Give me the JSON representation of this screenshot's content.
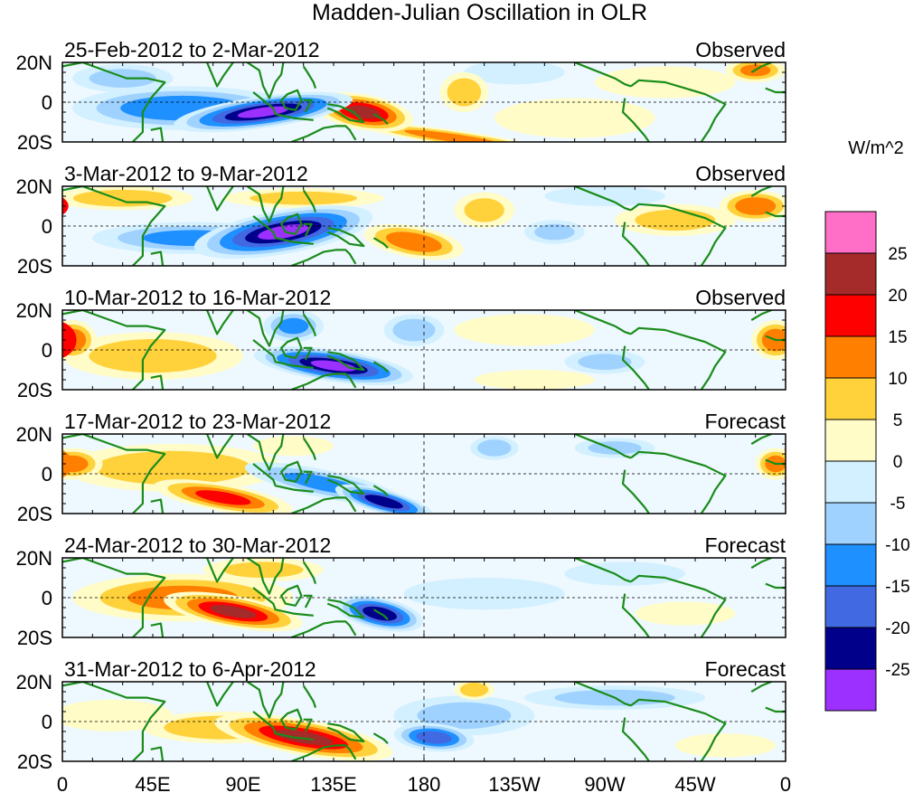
{
  "chart_data": {
    "type": "heatmap",
    "title": "Madden-Julian Oscillation in OLR",
    "variable": "OLR anomaly",
    "units": "W/m^2",
    "panels": [
      {
        "period": "25-Feb-2012 to 2-Mar-2012",
        "kind": "Observed",
        "features": [
          {
            "lon": 100,
            "lat": -5,
            "value": -30,
            "rx": 45,
            "ry": 8,
            "rot": -8
          },
          {
            "lon": 60,
            "lat": -3,
            "value": -18,
            "rx": 55,
            "ry": 11
          },
          {
            "lon": 150,
            "lat": -5,
            "value": 25,
            "rx": 25,
            "ry": 9,
            "rot": 10
          },
          {
            "lon": 200,
            "lat": 5,
            "value": 12,
            "rx": 12,
            "ry": 10
          },
          {
            "lon": 195,
            "lat": -18,
            "value": 15,
            "rx": 50,
            "ry": 4,
            "rot": 8
          },
          {
            "lon": 345,
            "lat": 16,
            "value": 15,
            "rx": 15,
            "ry": 6
          },
          {
            "lon": 255,
            "lat": -8,
            "value": 6,
            "rx": 40,
            "ry": 10
          },
          {
            "lon": 300,
            "lat": 10,
            "value": 6,
            "rx": 35,
            "ry": 8
          },
          {
            "lon": 30,
            "lat": 12,
            "value": -10,
            "rx": 25,
            "ry": 7
          },
          {
            "lon": 225,
            "lat": 15,
            "value": -6,
            "rx": 25,
            "ry": 6
          }
        ]
      },
      {
        "period": "3-Mar-2012 to 9-Mar-2012",
        "kind": "Observed",
        "features": [
          {
            "lon": 110,
            "lat": -3,
            "value": -30,
            "rx": 45,
            "ry": 11,
            "rot": -10
          },
          {
            "lon": 65,
            "lat": -6,
            "value": -15,
            "rx": 50,
            "ry": 8
          },
          {
            "lon": 175,
            "lat": -8,
            "value": 18,
            "rx": 25,
            "ry": 8,
            "rot": 10
          },
          {
            "lon": 30,
            "lat": 14,
            "value": 12,
            "rx": 35,
            "ry": 6
          },
          {
            "lon": 120,
            "lat": 14,
            "value": 10,
            "rx": 40,
            "ry": 5
          },
          {
            "lon": 210,
            "lat": 8,
            "value": 10,
            "rx": 15,
            "ry": 9
          },
          {
            "lon": 345,
            "lat": 10,
            "value": 18,
            "rx": 18,
            "ry": 8
          },
          {
            "lon": 305,
            "lat": 3,
            "value": 10,
            "rx": 30,
            "ry": 8
          },
          {
            "lon": 245,
            "lat": -3,
            "value": -10,
            "rx": 15,
            "ry": 6
          },
          {
            "lon": 270,
            "lat": 15,
            "value": -8,
            "rx": 30,
            "ry": 5
          }
        ]
      },
      {
        "period": "10-Mar-2012 to 16-Mar-2012",
        "kind": "Observed",
        "features": [
          {
            "lon": 135,
            "lat": -8,
            "value": -30,
            "rx": 40,
            "ry": 8,
            "rot": 8
          },
          {
            "lon": 115,
            "lat": 12,
            "value": -15,
            "rx": 15,
            "ry": 8
          },
          {
            "lon": 175,
            "lat": 10,
            "value": -12,
            "rx": 15,
            "ry": 8
          },
          {
            "lon": 45,
            "lat": -3,
            "value": 12,
            "rx": 45,
            "ry": 12
          },
          {
            "lon": 5,
            "lat": 5,
            "value": 18,
            "rx": 12,
            "ry": 10
          },
          {
            "lon": 355,
            "lat": 5,
            "value": 18,
            "rx": 12,
            "ry": 10
          },
          {
            "lon": 230,
            "lat": 10,
            "value": 8,
            "rx": 35,
            "ry": 8
          },
          {
            "lon": 270,
            "lat": -6,
            "value": -10,
            "rx": 20,
            "ry": 6
          },
          {
            "lon": 235,
            "lat": -15,
            "value": 6,
            "rx": 30,
            "ry": 5
          }
        ]
      },
      {
        "period": "17-Mar-2012 to 23-Mar-2012",
        "kind": "Forecast",
        "features": [
          {
            "lon": 160,
            "lat": -14,
            "value": -28,
            "rx": 25,
            "ry": 6,
            "rot": 15
          },
          {
            "lon": 130,
            "lat": -5,
            "value": -15,
            "rx": 40,
            "ry": 7,
            "rot": 12
          },
          {
            "lon": 80,
            "lat": -12,
            "value": 20,
            "rx": 35,
            "ry": 7,
            "rot": 10
          },
          {
            "lon": 55,
            "lat": 3,
            "value": 12,
            "rx": 55,
            "ry": 12
          },
          {
            "lon": 5,
            "lat": 5,
            "value": 16,
            "rx": 15,
            "ry": 8
          },
          {
            "lon": 355,
            "lat": 5,
            "value": 16,
            "rx": 10,
            "ry": 8
          },
          {
            "lon": 215,
            "lat": 13,
            "value": -12,
            "rx": 12,
            "ry": 6
          },
          {
            "lon": 275,
            "lat": 13,
            "value": -10,
            "rx": 20,
            "ry": 5
          },
          {
            "lon": 115,
            "lat": 14,
            "value": 8,
            "rx": 20,
            "ry": 5
          }
        ]
      },
      {
        "period": "24-Mar-2012 to 30-Mar-2012",
        "kind": "Forecast",
        "features": [
          {
            "lon": 158,
            "lat": -8,
            "value": -28,
            "rx": 22,
            "ry": 8,
            "rot": 12
          },
          {
            "lon": 85,
            "lat": -7,
            "value": 25,
            "rx": 35,
            "ry": 8,
            "rot": 10
          },
          {
            "lon": 60,
            "lat": 0,
            "value": 15,
            "rx": 55,
            "ry": 12
          },
          {
            "lon": 100,
            "lat": 14,
            "value": 10,
            "rx": 30,
            "ry": 6
          },
          {
            "lon": 210,
            "lat": 2,
            "value": -8,
            "rx": 40,
            "ry": 8
          },
          {
            "lon": 280,
            "lat": 12,
            "value": -8,
            "rx": 30,
            "ry": 6
          },
          {
            "lon": 310,
            "lat": -8,
            "value": 6,
            "rx": 25,
            "ry": 6
          }
        ]
      },
      {
        "period": "31-Mar-2012 to 6-Apr-2012",
        "kind": "Forecast",
        "features": [
          {
            "lon": 120,
            "lat": -8,
            "value": 25,
            "rx": 45,
            "ry": 9,
            "rot": 10
          },
          {
            "lon": 80,
            "lat": -3,
            "value": 14,
            "rx": 40,
            "ry": 8
          },
          {
            "lon": 185,
            "lat": -8,
            "value": -22,
            "rx": 20,
            "ry": 7,
            "rot": 5
          },
          {
            "lon": 200,
            "lat": 3,
            "value": -10,
            "rx": 35,
            "ry": 10
          },
          {
            "lon": 275,
            "lat": 12,
            "value": -10,
            "rx": 45,
            "ry": 6
          },
          {
            "lon": 25,
            "lat": 3,
            "value": 8,
            "rx": 30,
            "ry": 8
          },
          {
            "lon": 330,
            "lat": -12,
            "value": 8,
            "rx": 25,
            "ry": 6
          },
          {
            "lon": 205,
            "lat": 16,
            "value": 12,
            "rx": 10,
            "ry": 5
          }
        ]
      }
    ],
    "x_ticks": [
      "0",
      "45E",
      "90E",
      "135E",
      "180",
      "135W",
      "90W",
      "45W",
      "0"
    ],
    "y_ticks": [
      "20N",
      "0",
      "20S"
    ],
    "xlim": [
      0,
      360
    ],
    "ylim": [
      -20,
      20
    ],
    "colorbar": {
      "title": "W/m^2",
      "labels": [
        "25",
        "20",
        "15",
        "10",
        "5",
        "0",
        "-5",
        "-10",
        "-15",
        "-20",
        "-25"
      ],
      "colors": [
        "#ff6ec7",
        "#a52a2a",
        "#ff0000",
        "#ff7f00",
        "#ffd23c",
        "#fffcc8",
        "#d2f0ff",
        "#a0d2ff",
        "#1e90ff",
        "#4169e1",
        "#00008b",
        "#9b30ff"
      ]
    }
  }
}
